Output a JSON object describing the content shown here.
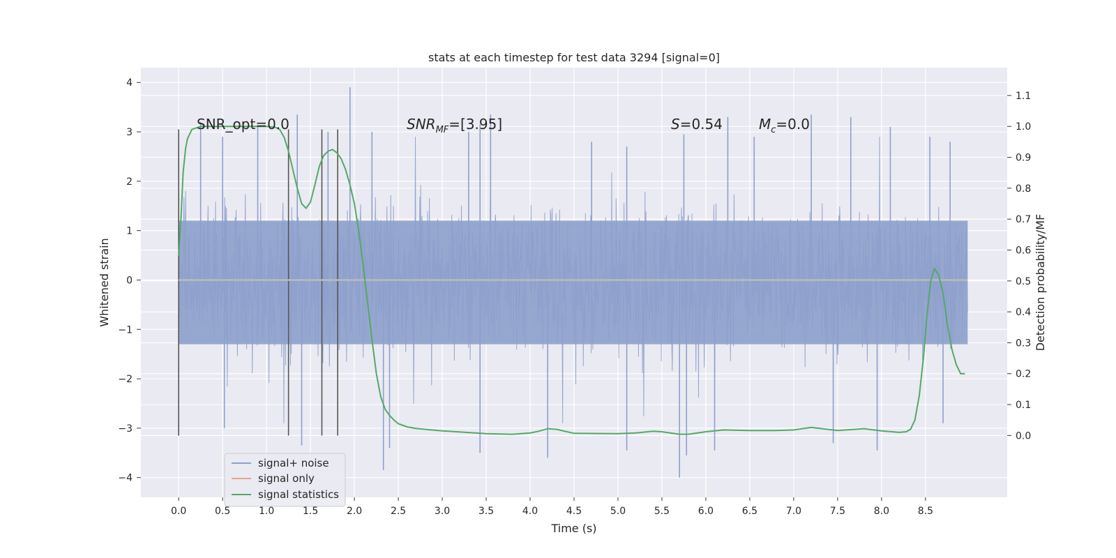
{
  "chart_data": {
    "type": "line",
    "title": "stats at each timestep for test data 3294 [signal=0]",
    "xlabel": "Time (s)",
    "ylabel": "Whitened strain",
    "ylabel_right": "Detection probability/MF",
    "xlim": [
      -0.43,
      9.43
    ],
    "ylim": [
      -4.4,
      4.3
    ],
    "ylim_right": [
      -0.2,
      1.19
    ],
    "x_ticks": [
      "0.0",
      "0.5",
      "1.0",
      "1.5",
      "2.0",
      "2.5",
      "3.0",
      "3.5",
      "4.0",
      "4.5",
      "5.0",
      "5.5",
      "6.0",
      "6.5",
      "7.0",
      "7.5",
      "8.0",
      "8.5"
    ],
    "y_ticks": [
      "4",
      "3",
      "2",
      "1",
      "0",
      "−1",
      "−2",
      "−3",
      "−4"
    ],
    "y_ticks_right": [
      "1.1",
      "1.0",
      "0.9",
      "0.8",
      "0.7",
      "0.6",
      "0.5",
      "0.4",
      "0.3",
      "0.2",
      "0.1",
      "0.0"
    ],
    "grid": true,
    "legend_position": "lower-left",
    "annotations": {
      "snr_opt": "SNR_opt=0.0",
      "snr_mf_prefix": "SNR",
      "snr_mf_sub": "MF",
      "snr_mf_value": "=[3.95]",
      "s_symbol": "S",
      "s_value": "=0.54",
      "mc_symbol": "M",
      "mc_sub": "c",
      "mc_value": "=0.0"
    },
    "vertical_lines": [
      0.0,
      1.25,
      1.63,
      1.81
    ],
    "vertical_line_range": [
      -3.15,
      3.05
    ],
    "series": [
      {
        "name": "signal+ noise",
        "color": "#8da0cb",
        "axis": "left",
        "description_range": {
          "x_start": 0.0,
          "x_end": 8.98,
          "dense_band": [
            -1.3,
            1.2
          ],
          "spikes_max": 3.9,
          "spikes_min": -4.0
        },
        "spike_peaks": [
          [
            0.25,
            3.2
          ],
          [
            0.5,
            2.9
          ],
          [
            0.9,
            3.1
          ],
          [
            1.35,
            3.35
          ],
          [
            1.7,
            3.0
          ],
          [
            1.95,
            3.9
          ],
          [
            2.2,
            3.0
          ],
          [
            3.3,
            3.0
          ],
          [
            3.43,
            3.15
          ],
          [
            3.55,
            3.35
          ],
          [
            4.7,
            2.8
          ],
          [
            5.1,
            2.7
          ],
          [
            5.75,
            2.95
          ],
          [
            6.25,
            3.3
          ],
          [
            6.55,
            2.9
          ],
          [
            7.2,
            3.35
          ],
          [
            7.65,
            3.3
          ],
          [
            8.1,
            3.1
          ],
          [
            8.55,
            2.9
          ],
          [
            8.78,
            2.8
          ],
          [
            0.52,
            -3.0
          ],
          [
            1.4,
            -3.35
          ],
          [
            2.33,
            -3.85
          ],
          [
            2.4,
            -3.4
          ],
          [
            3.43,
            -3.5
          ],
          [
            4.2,
            -3.6
          ],
          [
            5.1,
            -3.45
          ],
          [
            5.7,
            -4.0
          ],
          [
            5.78,
            -3.55
          ],
          [
            6.1,
            -3.45
          ],
          [
            7.45,
            -3.3
          ],
          [
            7.95,
            -3.45
          ],
          [
            8.7,
            -2.9
          ]
        ]
      },
      {
        "name": "signal only",
        "color": "#e5a58b",
        "axis": "left",
        "x": [
          0.0,
          8.98
        ],
        "y": [
          0.0,
          0.0
        ]
      },
      {
        "name": "signal statistics",
        "color": "#55a868",
        "axis": "right",
        "x": [
          0.0,
          0.03,
          0.05,
          0.08,
          0.1,
          0.15,
          0.25,
          0.4,
          0.6,
          0.8,
          1.0,
          1.1,
          1.15,
          1.2,
          1.25,
          1.3,
          1.35,
          1.4,
          1.45,
          1.5,
          1.55,
          1.6,
          1.65,
          1.7,
          1.75,
          1.8,
          1.85,
          1.9,
          1.95,
          2.0,
          2.05,
          2.1,
          2.15,
          2.2,
          2.25,
          2.3,
          2.35,
          2.4,
          2.45,
          2.5,
          2.6,
          2.7,
          2.8,
          3.0,
          3.5,
          3.8,
          4.0,
          4.1,
          4.2,
          4.3,
          4.5,
          5.0,
          5.2,
          5.4,
          5.5,
          5.7,
          5.8,
          6.0,
          6.2,
          6.5,
          6.8,
          7.0,
          7.2,
          7.5,
          7.8,
          8.0,
          8.2,
          8.28,
          8.33,
          8.38,
          8.43,
          8.48,
          8.52,
          8.56,
          8.6,
          8.65,
          8.7,
          8.75,
          8.8,
          8.85,
          8.9,
          8.95
        ],
        "y": [
          0.58,
          0.72,
          0.85,
          0.93,
          0.96,
          0.99,
          1.0,
          1.0,
          1.0,
          1.0,
          1.0,
          0.997,
          0.99,
          0.965,
          0.92,
          0.86,
          0.8,
          0.75,
          0.735,
          0.755,
          0.81,
          0.87,
          0.905,
          0.92,
          0.925,
          0.915,
          0.895,
          0.86,
          0.81,
          0.75,
          0.66,
          0.55,
          0.43,
          0.31,
          0.2,
          0.125,
          0.085,
          0.065,
          0.05,
          0.038,
          0.028,
          0.023,
          0.02,
          0.015,
          0.006,
          0.004,
          0.008,
          0.014,
          0.022,
          0.02,
          0.007,
          0.006,
          0.008,
          0.014,
          0.012,
          0.004,
          0.004,
          0.012,
          0.018,
          0.016,
          0.016,
          0.018,
          0.026,
          0.016,
          0.022,
          0.015,
          0.01,
          0.012,
          0.02,
          0.05,
          0.13,
          0.26,
          0.4,
          0.5,
          0.54,
          0.52,
          0.46,
          0.36,
          0.28,
          0.23,
          0.2,
          0.2
        ]
      }
    ]
  }
}
